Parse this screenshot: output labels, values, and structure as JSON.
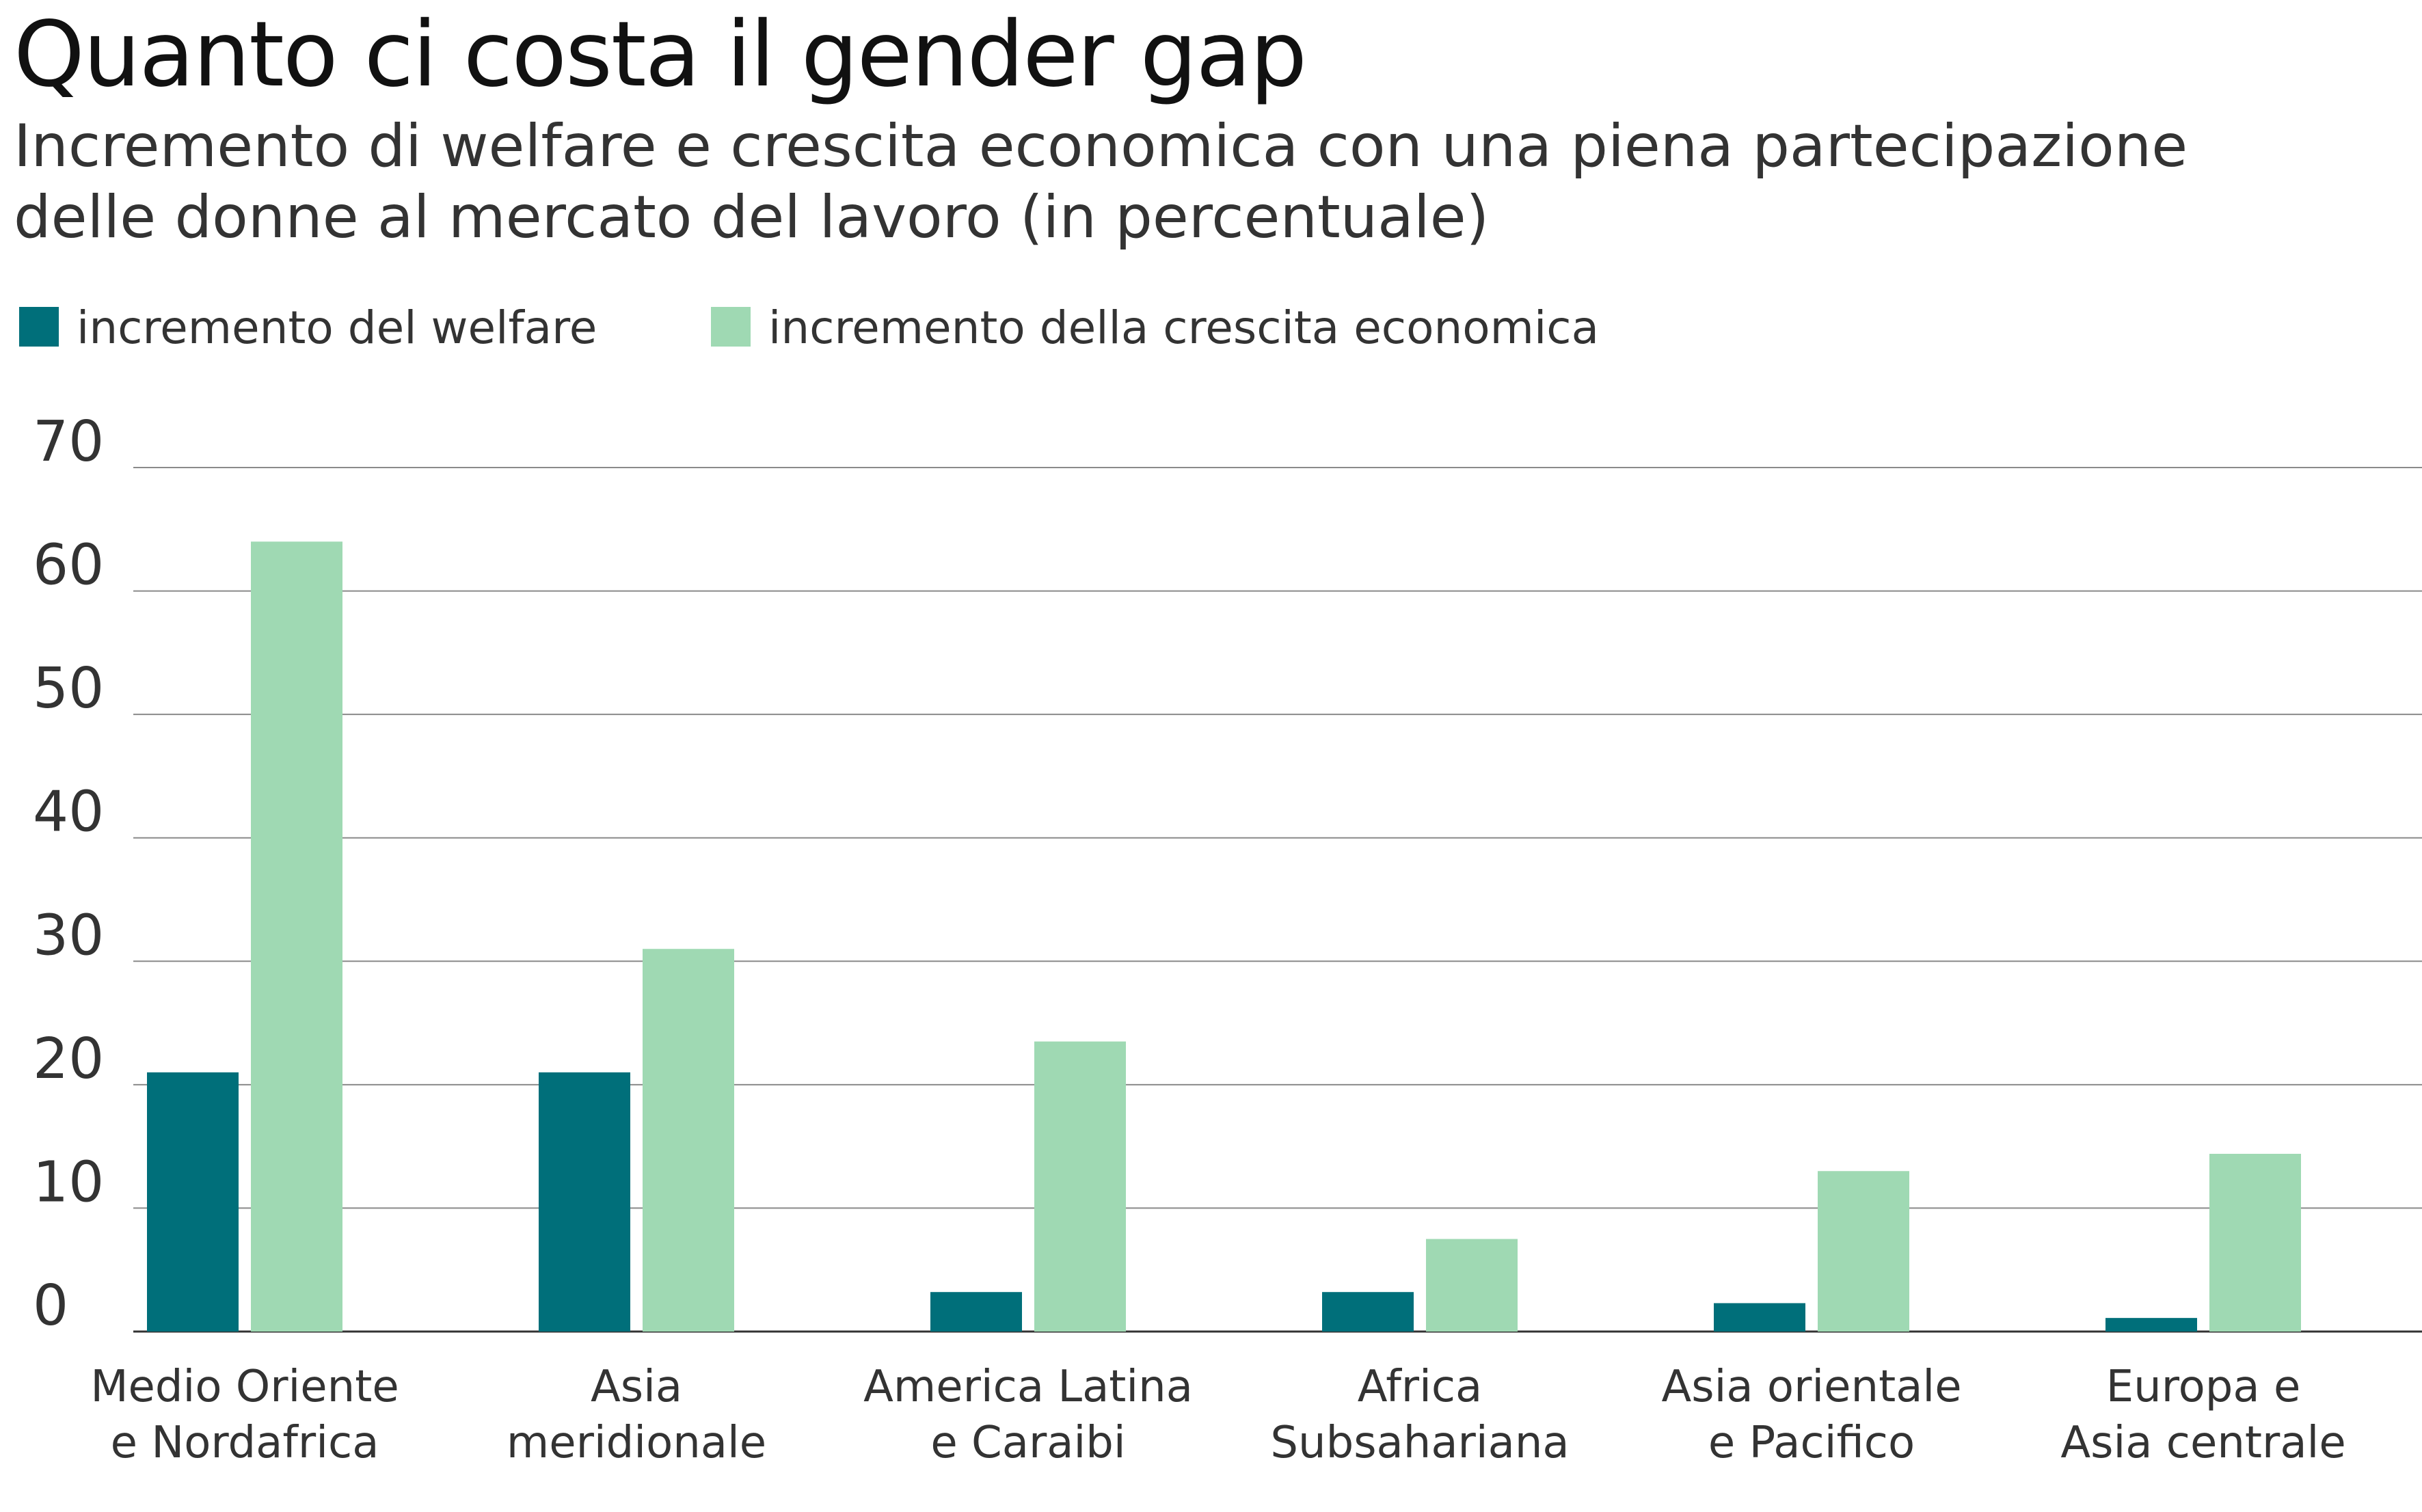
{
  "chart_data": {
    "type": "bar",
    "title": "Quanto ci costa il gender gap",
    "subtitle_lines": [
      "Incremento di welfare e crescita economica con una piena partecipazione",
      "delle donne al mercato del lavoro (in percentuale)"
    ],
    "categories": [
      [
        "Medio Oriente",
        "e Nordafrica"
      ],
      [
        "Asia",
        "meridionale"
      ],
      [
        "America Latina",
        "e Caraibi"
      ],
      [
        "Africa",
        "Subsahariana"
      ],
      [
        "Asia orientale",
        "e Pacifico"
      ],
      [
        "Europa e",
        "Asia centrale"
      ]
    ],
    "series": [
      {
        "name": "incremento del welfare",
        "color": "#006f7a",
        "values": [
          21,
          21,
          3.2,
          3.2,
          2.3,
          1.1
        ]
      },
      {
        "name": "incremento della crescita economica",
        "color": "#9fd9b3",
        "values": [
          64,
          31,
          23.5,
          7.5,
          13,
          14.4
        ]
      }
    ],
    "yticks": [
      0,
      10,
      20,
      30,
      40,
      50,
      60,
      70
    ],
    "ylim": [
      0,
      70
    ],
    "grid": true,
    "legend_position": "top-left",
    "xlabel": "",
    "ylabel": ""
  }
}
